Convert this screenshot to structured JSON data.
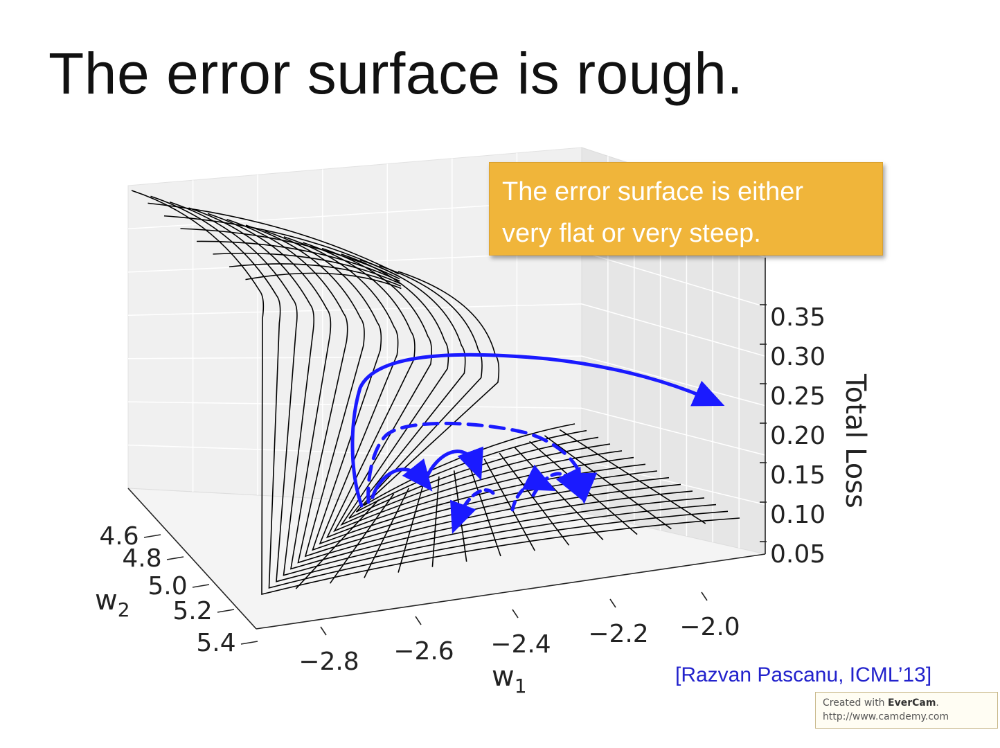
{
  "slide": {
    "title": "The error surface is rough.",
    "callout_line1": "The error surface is either",
    "callout_line2": "very flat or very steep.",
    "citation": "[Razvan Pascanu, ICML’13]",
    "watermark_line1_prefix": "Created with ",
    "watermark_brand": "EverCam",
    "watermark_line1_suffix": ".",
    "watermark_line2": "http://www.camdemy.com",
    "colors": {
      "callout": "#f0b53a",
      "arrows": "#1a1aff",
      "citation": "#2222cc",
      "surface": "#000000"
    }
  },
  "chart_data": {
    "type": "surface",
    "title": "",
    "xlabel": "w",
    "xlabel_sub": "1",
    "ylabel": "w",
    "ylabel_sub": "2",
    "zlabel": "Total Loss",
    "x_ticks": [
      "−2.8",
      "−2.6",
      "−2.4",
      "−2.2",
      "−2.0"
    ],
    "y_ticks": [
      "4.6",
      "4.8",
      "5.0",
      "5.2",
      "5.4"
    ],
    "z_ticks": [
      "0.35",
      "0.30",
      "0.25",
      "0.20",
      "0.15",
      "0.10",
      "0.05"
    ],
    "xlim": [
      -2.9,
      -1.95
    ],
    "ylim": [
      4.5,
      5.45
    ],
    "zlim": [
      0.05,
      0.38
    ],
    "grid": true,
    "annotations": [
      "solid blue arrow: large gradient step jumps off the surface",
      "dashed blue arrows: small steps bouncing along the flat region"
    ]
  }
}
